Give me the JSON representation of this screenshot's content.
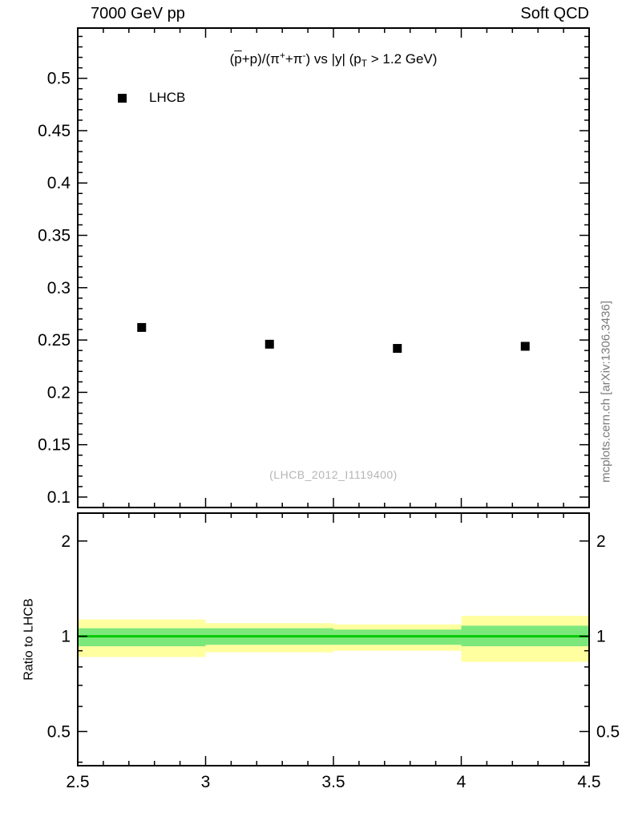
{
  "header": {
    "left": "7000 GeV pp",
    "right": "Soft QCD"
  },
  "side_text": "mcplots.cern.ch [arXiv:1306.3436]",
  "colors": {
    "yellow_band": "#ffffa0",
    "green_band": "#7ce87c",
    "green_line": "#00c800",
    "marker": "#000000",
    "watermark": "#b5b5b5",
    "side_text_color": "#7a7a7a"
  },
  "chart_data": [
    {
      "type": "scatter",
      "title": "(p̄+p)/(π⁺+π⁻) vs |y| (pT > 1.2 GeV)",
      "title_parts": [
        {
          "t": "("
        },
        {
          "t": "p",
          "s": "ovl"
        },
        {
          "t": "+p)/(π"
        },
        {
          "t": "+",
          "s": "sup"
        },
        {
          "t": "+π"
        },
        {
          "t": "-",
          "s": "sup"
        },
        {
          "t": ") vs |y| (p"
        },
        {
          "t": "T",
          "s": "sub"
        },
        {
          "t": " > 1.2 GeV)"
        }
      ],
      "xlim": [
        2.5,
        4.5
      ],
      "ylim": [
        0.09,
        0.548
      ],
      "yticks": [
        0.1,
        0.15,
        0.2,
        0.25,
        0.3,
        0.35,
        0.4,
        0.45,
        0.5
      ],
      "series": [
        {
          "name": "LHCB",
          "marker": "filled-square",
          "color": "#000000",
          "x": [
            2.75,
            3.25,
            3.75,
            4.25
          ],
          "y": [
            0.262,
            0.246,
            0.242,
            0.244
          ]
        }
      ],
      "watermark": "(LHCB_2012_I1119400)"
    },
    {
      "type": "band",
      "ylabel": "Ratio to LHCB",
      "yscale": "log",
      "ylim": [
        0.39,
        2.45
      ],
      "yticks": [
        0.5,
        1,
        2
      ],
      "xticks": [
        2.5,
        3,
        3.5,
        4,
        4.5
      ],
      "center_line": 1,
      "bands": [
        {
          "x0": 2.5,
          "x1": 3.0,
          "yellow": [
            0.86,
            1.13
          ],
          "green": [
            0.93,
            1.06
          ]
        },
        {
          "x0": 3.0,
          "x1": 3.5,
          "yellow": [
            0.89,
            1.1
          ],
          "green": [
            0.94,
            1.06
          ]
        },
        {
          "x0": 3.5,
          "x1": 4.0,
          "yellow": [
            0.9,
            1.09
          ],
          "green": [
            0.94,
            1.05
          ]
        },
        {
          "x0": 4.0,
          "x1": 4.5,
          "yellow": [
            0.83,
            1.16
          ],
          "green": [
            0.93,
            1.08
          ]
        }
      ]
    }
  ]
}
